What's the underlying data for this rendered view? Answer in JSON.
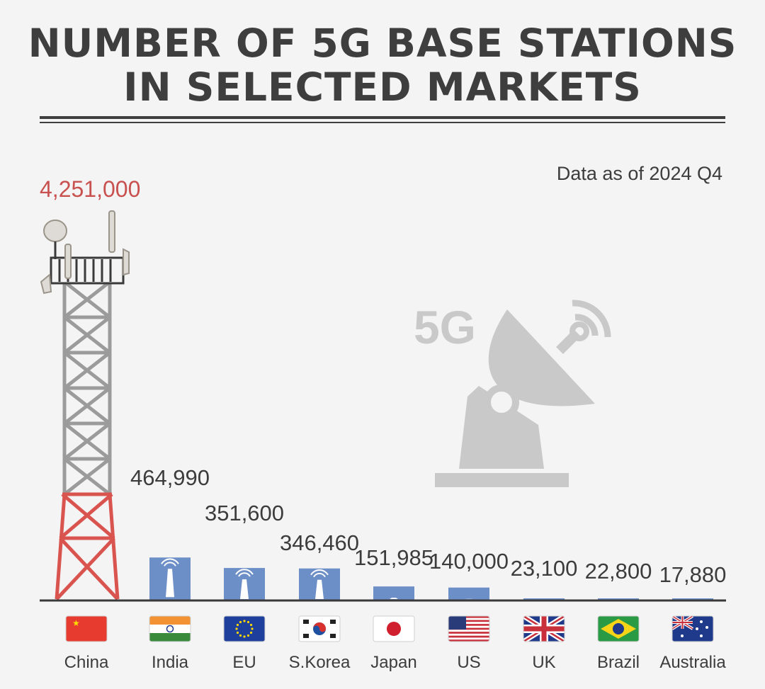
{
  "title_line1": "NUMBER OF 5G BASE STATIONS",
  "title_line2": "IN SELECTED MARKETS",
  "note": "Data as of 2024 Q4",
  "background_icon_text": "5G",
  "colors": {
    "bar": "#6d8fc7",
    "highlight": "#c8514f",
    "text": "#3c3c3c",
    "tower_upper": "#9a9a9a",
    "tower_lower": "#d9534f"
  },
  "chart_data": {
    "type": "bar",
    "title": "NUMBER OF 5G BASE STATIONS IN SELECTED MARKETS",
    "categories": [
      "China",
      "India",
      "EU",
      "S.Korea",
      "Japan",
      "US",
      "UK",
      "Brazil",
      "Australia"
    ],
    "values": [
      4251000,
      464990,
      351600,
      346460,
      151985,
      140000,
      23100,
      22800,
      17880
    ],
    "value_labels": [
      "4,251,000",
      "464,990",
      "351,600",
      "346,460",
      "151,985",
      "140,000",
      "23,100",
      "22,800",
      "17,880"
    ],
    "flags": [
      "china-flag",
      "india-flag",
      "eu-flag",
      "south-korea-flag",
      "japan-flag",
      "us-flag",
      "uk-flag",
      "brazil-flag",
      "australia-flag"
    ],
    "ylim": [
      0,
      4251000
    ]
  }
}
